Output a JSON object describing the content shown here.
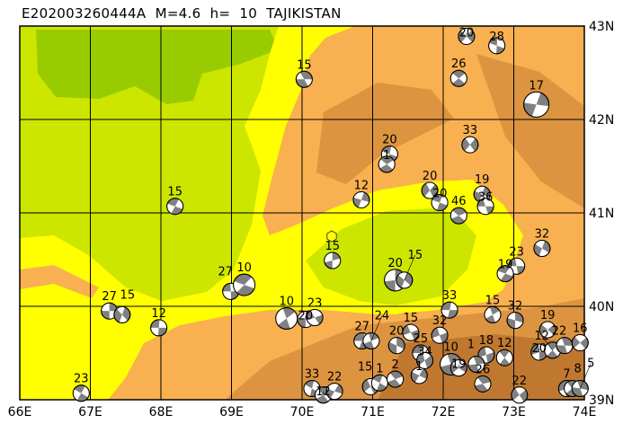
{
  "title": "E202003260444A  M=4.6  h=  10  TAJIKISTAN",
  "map": {
    "lon_range": [
      66,
      74
    ],
    "lat_range": [
      39,
      43
    ],
    "lon_ticks": [
      "66E",
      "67E",
      "68E",
      "69E",
      "70E",
      "71E",
      "72E",
      "73E",
      "74E"
    ],
    "lat_ticks": [
      "43N",
      "42N",
      "41N",
      "40N",
      "39N"
    ],
    "grid": true,
    "colors": {
      "lowland_green": "#cce600",
      "dark_green": "#99cc00",
      "foothill_yellow": "#ffff00",
      "mountain_orange": "#f8b050",
      "mountain_brown": "#dc9440",
      "high_brown": "#c07830",
      "beachball_compression": "#808080",
      "beachball_dilatation": "#ffffff",
      "epicenter_marker": "#ffff00"
    },
    "epicenter": {
      "lon": 70.42,
      "lat": 40.75,
      "icon": "hexagon"
    },
    "events": [
      {
        "lon": 70.03,
        "lat": 42.43,
        "depth": "15"
      },
      {
        "lon": 72.33,
        "lat": 42.89,
        "depth": "20"
      },
      {
        "lon": 72.76,
        "lat": 42.79,
        "depth": "28"
      },
      {
        "lon": 72.22,
        "lat": 42.44,
        "depth": "26"
      },
      {
        "lon": 73.32,
        "lat": 42.16,
        "depth": "17"
      },
      {
        "lon": 72.38,
        "lat": 41.73,
        "depth": "33"
      },
      {
        "lon": 71.24,
        "lat": 41.63,
        "depth": "20"
      },
      {
        "lon": 71.2,
        "lat": 41.52,
        "depth": "1"
      },
      {
        "lon": 70.84,
        "lat": 41.14,
        "depth": "12"
      },
      {
        "lon": 71.81,
        "lat": 41.24,
        "depth": "20"
      },
      {
        "lon": 71.95,
        "lat": 41.11,
        "depth": "20"
      },
      {
        "lon": 72.22,
        "lat": 40.97,
        "depth": "46"
      },
      {
        "lon": 72.55,
        "lat": 41.2,
        "depth": "19"
      },
      {
        "lon": 72.6,
        "lat": 41.07,
        "depth": "36"
      },
      {
        "lon": 68.2,
        "lat": 41.07,
        "depth": "15"
      },
      {
        "lon": 70.43,
        "lat": 40.49,
        "depth": "15"
      },
      {
        "lon": 73.4,
        "lat": 40.62,
        "depth": "32"
      },
      {
        "lon": 73.04,
        "lat": 40.43,
        "depth": "23"
      },
      {
        "lon": 72.88,
        "lat": 40.35,
        "depth": "19"
      },
      {
        "lon": 71.32,
        "lat": 40.28,
        "depth": "20"
      },
      {
        "lon": 71.45,
        "lat": 40.28,
        "depth": "15"
      },
      {
        "lon": 68.99,
        "lat": 40.16,
        "depth": "27"
      },
      {
        "lon": 69.18,
        "lat": 40.23,
        "depth": "10"
      },
      {
        "lon": 67.27,
        "lat": 39.95,
        "depth": "27"
      },
      {
        "lon": 67.45,
        "lat": 39.91,
        "depth": "15"
      },
      {
        "lon": 67.97,
        "lat": 39.77,
        "depth": "12"
      },
      {
        "lon": 69.78,
        "lat": 39.87,
        "depth": "10"
      },
      {
        "lon": 70.05,
        "lat": 39.86,
        "depth": "20"
      },
      {
        "lon": 70.18,
        "lat": 39.88,
        "depth": "23"
      },
      {
        "lon": 72.09,
        "lat": 39.96,
        "depth": "33"
      },
      {
        "lon": 72.7,
        "lat": 39.91,
        "depth": "15"
      },
      {
        "lon": 73.02,
        "lat": 39.85,
        "depth": "32"
      },
      {
        "lon": 71.54,
        "lat": 39.72,
        "depth": "15"
      },
      {
        "lon": 70.85,
        "lat": 39.63,
        "depth": "27"
      },
      {
        "lon": 70.98,
        "lat": 39.63,
        "depth": "24"
      },
      {
        "lon": 71.34,
        "lat": 39.58,
        "depth": "20"
      },
      {
        "lon": 71.95,
        "lat": 39.69,
        "depth": "32"
      },
      {
        "lon": 71.68,
        "lat": 39.5,
        "depth": "25"
      },
      {
        "lon": 72.11,
        "lat": 39.38,
        "depth": "10"
      },
      {
        "lon": 72.22,
        "lat": 39.34,
        "depth": "19"
      },
      {
        "lon": 72.61,
        "lat": 39.48,
        "depth": "18"
      },
      {
        "lon": 72.87,
        "lat": 39.45,
        "depth": "12"
      },
      {
        "lon": 72.47,
        "lat": 39.38,
        "depth": "1"
      },
      {
        "lon": 73.48,
        "lat": 39.75,
        "depth": "19"
      },
      {
        "lon": 73.36,
        "lat": 39.51,
        "depth": "20"
      },
      {
        "lon": 73.55,
        "lat": 39.53,
        "depth": "12"
      },
      {
        "lon": 73.72,
        "lat": 39.58,
        "depth": "22"
      },
      {
        "lon": 73.94,
        "lat": 39.61,
        "depth": "16"
      },
      {
        "lon": 73.75,
        "lat": 39.12,
        "depth": "7"
      },
      {
        "lon": 73.83,
        "lat": 39.12,
        "depth": "8"
      },
      {
        "lon": 73.94,
        "lat": 39.12,
        "depth": "5"
      },
      {
        "lon": 73.08,
        "lat": 39.05,
        "depth": "22"
      },
      {
        "lon": 70.14,
        "lat": 39.12,
        "depth": "33"
      },
      {
        "lon": 70.3,
        "lat": 39.05,
        "depth": "12"
      },
      {
        "lon": 70.46,
        "lat": 39.09,
        "depth": "22"
      },
      {
        "lon": 70.97,
        "lat": 39.14,
        "depth": "15"
      },
      {
        "lon": 71.1,
        "lat": 39.18,
        "depth": "1"
      },
      {
        "lon": 71.32,
        "lat": 39.22,
        "depth": "2"
      },
      {
        "lon": 71.66,
        "lat": 39.26,
        "depth": "1"
      },
      {
        "lon": 71.74,
        "lat": 39.42,
        "depth": "34"
      },
      {
        "lon": 66.87,
        "lat": 39.07,
        "depth": "23"
      },
      {
        "lon": 72.56,
        "lat": 39.17,
        "depth": "26"
      }
    ]
  }
}
